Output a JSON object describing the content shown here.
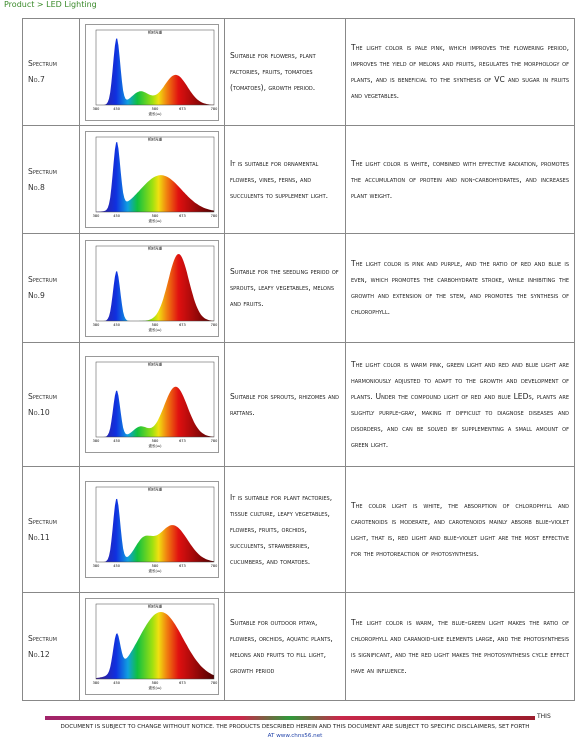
{
  "breadcrumb": "Product > LED Lighting",
  "spectrum_chart": {
    "title": "相对光谱",
    "ticks": [
      "380",
      "450",
      "580",
      "673",
      "780"
    ],
    "axis_label": "波长(nm)"
  },
  "table": {
    "rows": [
      {
        "label": "Spectrum No.7",
        "suitable": "Suitable for flowers, plant factories, fruits, tomatoes (tomatoes), growth period.",
        "description": "The light color is pale pink, which improves the flowering period, improves the yield of melons and fruits, regulates the morphology of plants, and is beneficial to the synthesis of VC and sugar in fruits and vegetables."
      },
      {
        "label": "Spectrum No.8",
        "suitable": "It is suitable for ornamental flowers, vines, ferns, and succulents to supplement light.",
        "description": "The light color is white, combined with effective radiation, promotes the accumulation of protein and non-carbohydrates, and increases plant weight."
      },
      {
        "label": "Spectrum No.9",
        "suitable": "Suitable for the seedling period of sprouts, leafy vegetables, melons and fruits.",
        "description": "The light color is pink and purple, and the ratio of red and blue is even, which promotes the carbohydrate stroke, while inhibiting the growth and extension of the stem, and promotes the synthesis of chlorophyll."
      },
      {
        "label": "Spectrum No.10",
        "suitable": "Suitable for sprouts, rhizomes and rattans.",
        "description": "The light color is warm pink, green light and red and blue light are harmoniously adjusted to adapt to the growth and development of plants. Under the compound light of red and blue LEDs, plants are slightly purple-gray, making it difficult to diagnose diseases and disorders, and can be solved by supplementing a small amount of green light."
      },
      {
        "label": "Spectrum No.11",
        "suitable": "It is suitable for plant factories, tissue culture, leafy vegetables, flowers, fruits, orchids, succulents, strawberries, cucumbers, and tomatoes.",
        "description": "The color light is white, the absorption of chlorophyll and carotenoids is moderate, and carotenoids mainly absorb blue-violet light, that is, red light and blue-violet light are the most effective for the photoreaction of photosynthesis."
      },
      {
        "label": "Spectrum No.12",
        "suitable": "Suitable for outdoor pitaya, flowers, orchids, aquatic plants, melons and fruits to fill light, growth period",
        "description": "The light color is warm, the blue-green light makes the ratio of chlorophyll and caranoid-like elements large, and the photosynthesis is significant, and the red light makes the photosynthesis cycle effect have an influence."
      }
    ]
  },
  "footer": {
    "notice_start": "THIS",
    "notice": "DOCUMENT IS SUBJECT TO CHANGE WITHOUT NOTICE. THE PRODUCTS DESCRIBED HEREIN AND THIS DOCUMENT ARE SUBJECT TO SPECIFIC DISCLAIMERS, SET FORTH",
    "url": "AT www.chns56.net"
  }
}
